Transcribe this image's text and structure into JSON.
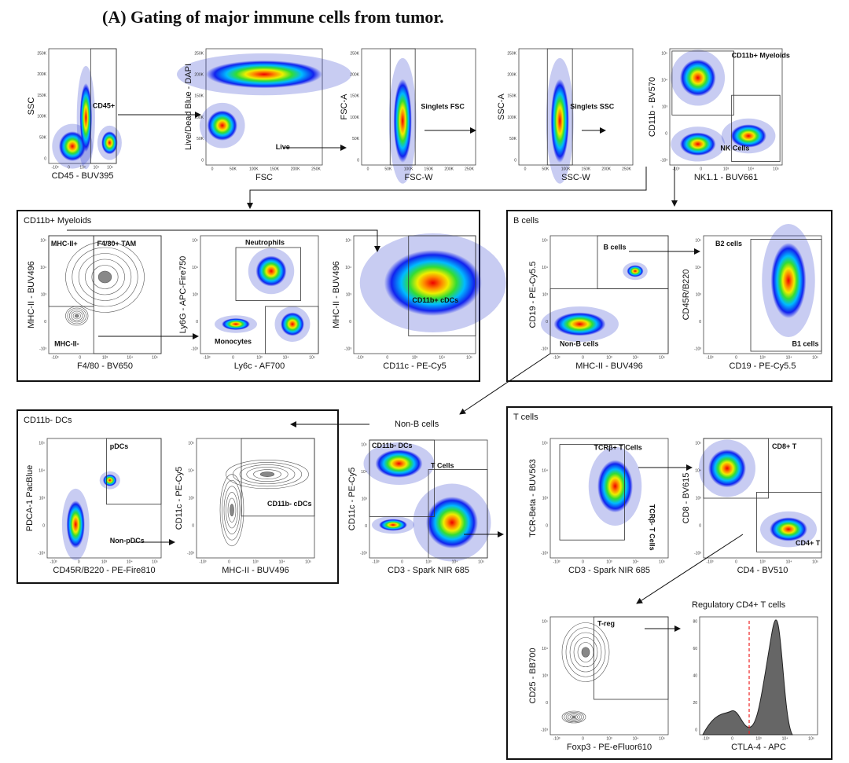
{
  "title": "(A) Gating of major immune cells from tumor.",
  "tick_sets": {
    "linear": [
      "0",
      "50K",
      "100K",
      "150K",
      "200K",
      "250K"
    ],
    "log": [
      "-10³",
      "0",
      "10³",
      "10⁴",
      "10⁵"
    ],
    "hist": [
      "0",
      "20",
      "40",
      "60",
      "80"
    ]
  },
  "groups": [
    {
      "title": "CD11b+ Myeloids"
    },
    {
      "title": "B cells"
    },
    {
      "title": "CD11b- DCs"
    },
    {
      "title": "T cells"
    }
  ],
  "labels": [
    "Non-B cells",
    "Regulatory CD4+ T cells"
  ],
  "plots": [
    {
      "style": "density",
      "x_label": "CD45 - BUV395",
      "y_label": "SSC",
      "gates": [
        "CD45+"
      ]
    },
    {
      "style": "density",
      "x_label": "FSC",
      "y_label": "Live/Dead Blue - DAPI",
      "gates": [
        "Live"
      ]
    },
    {
      "style": "density",
      "x_label": "FSC-W",
      "y_label": "FSC-A",
      "gates": [
        "Singlets FSC"
      ]
    },
    {
      "style": "density",
      "x_label": "SSC-W",
      "y_label": "SSC-A",
      "gates": [
        "Singlets SSC"
      ]
    },
    {
      "style": "density",
      "x_label": "NK1.1 - BUV661",
      "y_label": "CD11b - BV570",
      "gates": [
        "CD11b+ Myeloids",
        "NK Cells"
      ]
    },
    {
      "style": "contour",
      "x_label": "F4/80 - BV650",
      "y_label": "MHC-II - BUV496",
      "gates": [
        "MHC-II+",
        "F4/80+ TAM",
        "MHC-II-"
      ]
    },
    {
      "style": "density",
      "x_label": "Ly6c - AF700",
      "y_label": "Ly6G - APC-Fire750",
      "gates": [
        "Neutrophils",
        "Monocytes"
      ]
    },
    {
      "style": "density",
      "x_label": "CD11c - PE-Cy5",
      "y_label": "MHC-II - BUV496",
      "gates": [
        "CD11b+ cDCs"
      ]
    },
    {
      "style": "density",
      "x_label": "MHC-II - BUV496",
      "y_label": "CD19 - PE-Cy5.5",
      "gates": [
        "B cells",
        "Non-B cells"
      ]
    },
    {
      "style": "density",
      "x_label": "CD19 - PE-Cy5.5",
      "y_label": "CD45R/B220",
      "gates": [
        "B2 cells",
        "B1 cells"
      ]
    },
    {
      "style": "density",
      "x_label": "CD3 - Spark NIR 685",
      "y_label": "CD11c - PE-Cy5",
      "gates": [
        "CD11b- DCs",
        "T Cells"
      ]
    },
    {
      "style": "density",
      "x_label": "CD45R/B220 - PE-Fire810",
      "y_label": "PDCA-1 PacBlue",
      "gates": [
        "pDCs",
        "Non-pDCs"
      ]
    },
    {
      "style": "contour",
      "x_label": "MHC-II - BUV496",
      "y_label": "CD11c - PE-Cy5",
      "gates": [
        "CD11b- cDCs"
      ]
    },
    {
      "style": "density",
      "x_label": "CD3 - Spark NIR 685",
      "y_label": "TCR-Beta - BUV563",
      "gates": [
        "TCRβ+ T Cells",
        "TCRβ- T Cells"
      ]
    },
    {
      "style": "density",
      "x_label": "CD4 - BV510",
      "y_label": "CD8 - BV615",
      "gates": [
        "CD8+ T",
        "CD4+ T"
      ]
    },
    {
      "style": "contour",
      "x_label": "Foxp3 - PE-eFluor610",
      "y_label": "CD25 - BB700",
      "gates": [
        "T-reg"
      ]
    },
    {
      "style": "hist",
      "x_label": "CTLA-4 - APC",
      "y_label": "",
      "gates": []
    }
  ]
}
